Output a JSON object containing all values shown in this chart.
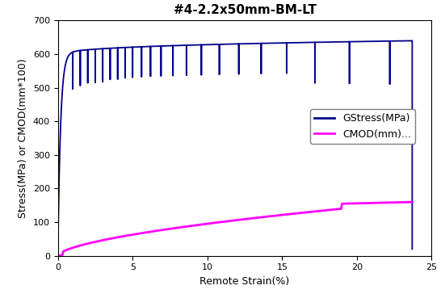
{
  "title": "#4-2.2x50mm-BM-LT",
  "xlabel": "Remote Strain(%)",
  "ylabel": "Stress(MPa) or CMOD(mm*100)",
  "xlim": [
    0,
    25
  ],
  "ylim": [
    0,
    700
  ],
  "xticks": [
    0,
    5,
    10,
    15,
    20,
    25
  ],
  "yticks": [
    0,
    100,
    200,
    300,
    400,
    500,
    600,
    700
  ],
  "stress_color": "#00008B",
  "cmod_color": "#FF00FF",
  "legend_stress": "GStress(MPa)",
  "legend_cmod": "CMOD(mm)...",
  "title_fontsize": 11,
  "axis_fontsize": 9,
  "legend_fontsize": 9,
  "stress_lw": 1.3,
  "cmod_lw": 2.0,
  "final_strain": 23.7,
  "final_stress": 640,
  "drop_end_stress": 20,
  "cycle_positions": [
    1.0,
    1.5,
    2.0,
    2.5,
    3.0,
    3.5,
    4.0,
    4.5,
    5.0,
    5.6,
    6.2,
    6.9,
    7.7,
    8.6,
    9.6,
    10.8,
    12.1,
    13.6,
    15.3,
    17.2,
    19.5,
    22.2
  ],
  "drop_fractions": [
    0.82,
    0.83,
    0.84,
    0.84,
    0.84,
    0.85,
    0.85,
    0.855,
    0.856,
    0.857,
    0.858,
    0.858,
    0.858,
    0.858,
    0.858,
    0.858,
    0.858,
    0.858,
    0.858,
    0.81,
    0.805,
    0.8
  ]
}
